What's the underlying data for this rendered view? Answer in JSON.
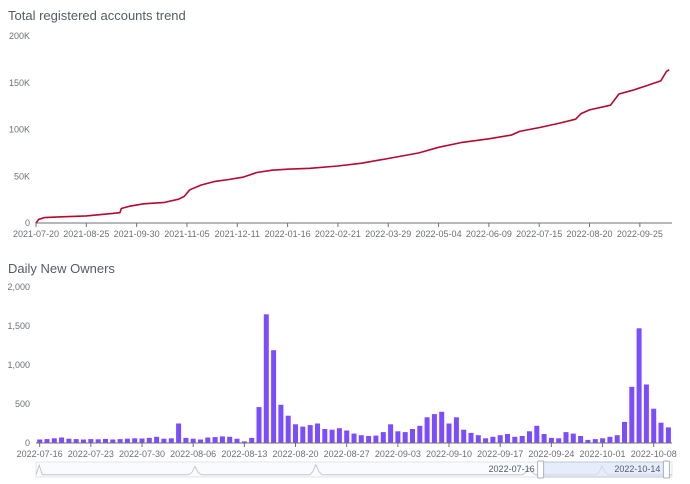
{
  "colors": {
    "line": "#b5092e",
    "bar": "#7c4dff",
    "axis": "#6e7079",
    "grid": "#eeeeee",
    "zoom_fill": "#d8e2f7",
    "zoom_border": "#bfc7d6"
  },
  "chart_data": [
    {
      "type": "line",
      "title": "Total registered accounts trend",
      "xlabel": "",
      "ylabel": "",
      "x_start": "2021-07-20",
      "x_end": "2022-10-18",
      "xtick_labels": [
        "2021-07-20",
        "2021-08-25",
        "2021-09-30",
        "2021-11-05",
        "2021-12-11",
        "2022-01-16",
        "2022-02-21",
        "2022-03-29",
        "2022-05-04",
        "2022-06-09",
        "2022-07-15",
        "2022-08-20",
        "2022-09-25"
      ],
      "ytick_labels": [
        "0",
        "50K",
        "100K",
        "150K",
        "200K"
      ],
      "ylim": [
        0,
        200000
      ],
      "grid": false,
      "series": [
        {
          "x": [
            "2021-07-20",
            "2021-07-22",
            "2021-07-26",
            "2021-08-05",
            "2021-08-25",
            "2021-09-10",
            "2021-09-18",
            "2021-09-19",
            "2021-09-25",
            "2021-10-05",
            "2021-10-20",
            "2021-10-30",
            "2021-11-03",
            "2021-11-07",
            "2021-11-15",
            "2021-11-25",
            "2021-12-05",
            "2021-12-15",
            "2021-12-25",
            "2022-01-05",
            "2022-01-16",
            "2022-02-01",
            "2022-02-21",
            "2022-03-10",
            "2022-03-29",
            "2022-04-20",
            "2022-05-04",
            "2022-05-20",
            "2022-06-09",
            "2022-06-25",
            "2022-07-01",
            "2022-07-15",
            "2022-07-30",
            "2022-08-10",
            "2022-08-14",
            "2022-08-20",
            "2022-09-04",
            "2022-09-07",
            "2022-09-10",
            "2022-09-20",
            "2022-09-30",
            "2022-10-06",
            "2022-10-10",
            "2022-10-14",
            "2022-10-16"
          ],
          "values": [
            0,
            4000,
            5800,
            6500,
            7600,
            9800,
            11000,
            15500,
            18000,
            20500,
            22000,
            25500,
            28500,
            35500,
            40500,
            44500,
            46500,
            49000,
            54000,
            56500,
            57500,
            58500,
            61000,
            64000,
            69000,
            75000,
            81000,
            86000,
            90000,
            94000,
            98000,
            102000,
            107000,
            111000,
            117000,
            121000,
            126000,
            132000,
            138000,
            142000,
            147000,
            150000,
            152000,
            162000,
            164000
          ]
        }
      ]
    },
    {
      "type": "bar",
      "title": "Daily New Owners",
      "xlabel": "",
      "ylabel": "",
      "x_start": "2022-07-16",
      "x_end": "2022-10-14",
      "xtick_labels": [
        "2022-07-16",
        "2022-07-23",
        "2022-07-30",
        "2022-08-06",
        "2022-08-13",
        "2022-08-20",
        "2022-08-27",
        "2022-09-03",
        "2022-09-10",
        "2022-09-17",
        "2022-09-24",
        "2022-10-01",
        "2022-10-08"
      ],
      "ytick_labels": [
        "0",
        "500",
        "1,000",
        "1,500",
        "2,000"
      ],
      "ylim": [
        0,
        2000
      ],
      "grid": false,
      "series": [
        {
          "values": [
            45,
            50,
            60,
            70,
            55,
            50,
            45,
            50,
            48,
            52,
            45,
            50,
            55,
            60,
            58,
            65,
            80,
            55,
            60,
            250,
            65,
            55,
            45,
            70,
            75,
            85,
            80,
            55,
            20,
            65,
            460,
            1650,
            1190,
            490,
            350,
            240,
            210,
            230,
            250,
            180,
            170,
            190,
            160,
            120,
            100,
            90,
            95,
            140,
            240,
            150,
            140,
            180,
            220,
            330,
            370,
            400,
            250,
            330,
            170,
            130,
            100,
            60,
            80,
            100,
            115,
            80,
            90,
            150,
            220,
            115,
            65,
            60,
            140,
            120,
            90,
            40,
            50,
            60,
            80,
            100,
            270,
            720,
            1470,
            750,
            440,
            260,
            200
          ]
        }
      ]
    }
  ],
  "zoom": {
    "start_label": "2022-07-16",
    "end_label": "2022-10-14"
  }
}
